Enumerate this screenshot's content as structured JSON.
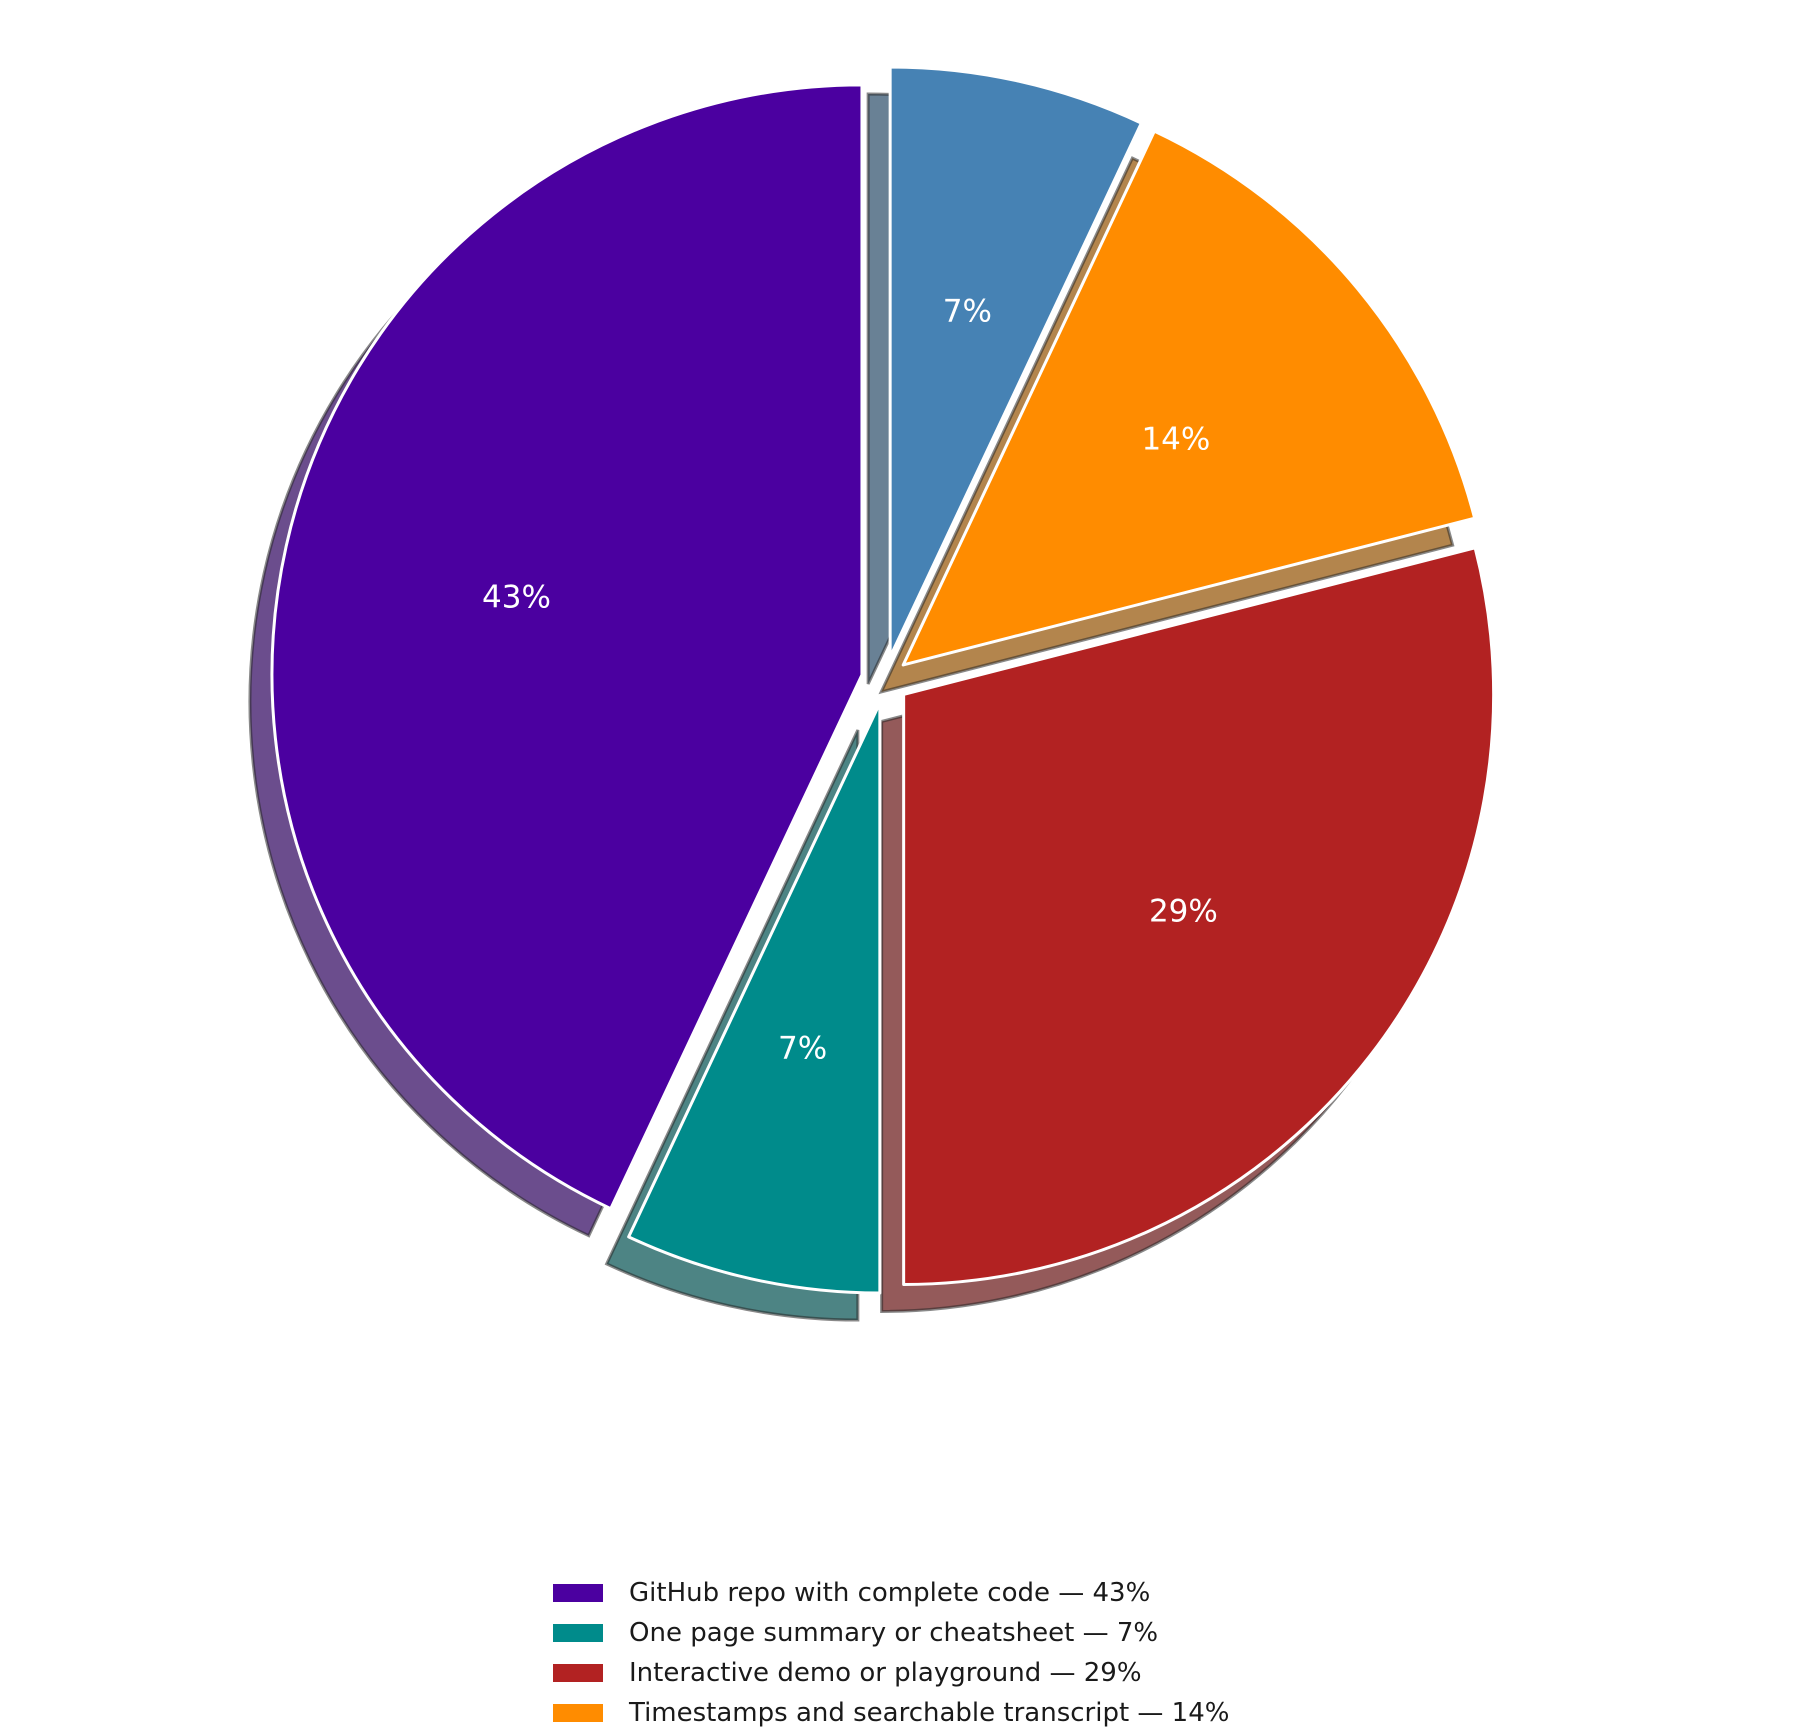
{
  "chart_data": {
    "type": "pie",
    "start_angle_deg": 90,
    "direction": "counterclockwise",
    "exploded": true,
    "shadow": true,
    "slices": [
      {
        "label": "GitHub repo with complete code",
        "value": 43,
        "pct_label": "43%",
        "legend_label": "GitHub repo with complete code — 43%",
        "color": "#4b00a0",
        "in_legend": true
      },
      {
        "label": "One page summary or cheatsheet",
        "value": 7,
        "pct_label": "7%",
        "legend_label": "One page summary or cheatsheet — 7%",
        "color": "#008b8b",
        "in_legend": true
      },
      {
        "label": "Interactive demo or playground",
        "value": 29,
        "pct_label": "29%",
        "legend_label": "Interactive demo or playground — 29%",
        "color": "#b22222",
        "in_legend": true
      },
      {
        "label": "Timestamps and searchable transcript",
        "value": 14,
        "pct_label": "14%",
        "legend_label": "Timestamps and searchable transcript — 14%",
        "color": "#ff8c00",
        "in_legend": true
      },
      {
        "label": "",
        "value": 7,
        "pct_label": "7%",
        "legend_label": "",
        "color": "#4682b4",
        "in_legend": false
      }
    ],
    "legend_position": "bottom-center"
  }
}
